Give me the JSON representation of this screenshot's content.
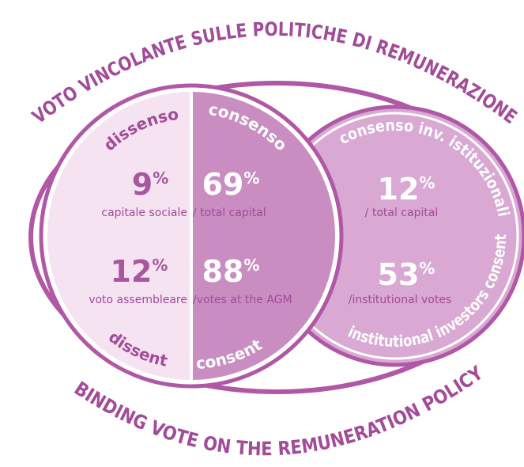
{
  "header": {
    "title_it": "VOTO VINCOLANTE SULLE POLITICHE DI REMUNERAZIONE",
    "title_en": "BINDING VOTE ON THE REMUNERATION POLICY"
  },
  "dissent": {
    "label_it": "dissenso",
    "label_en": "dissent",
    "capital": "9%",
    "votes": "12%"
  },
  "consent": {
    "label_it": "consenso",
    "label_en": "consent",
    "capital": "69%",
    "votes": "88%"
  },
  "institutional": {
    "label_it": "consenso inv. istituzionali",
    "label_en": "institutional investors consent",
    "capital": "12%",
    "votes": "53%"
  },
  "captions": {
    "capital_it": "capitale sociale",
    "capital_en": "/ total capital",
    "votes_it": "voto assembleare",
    "votes_en": "/votes at the AGM",
    "inst_capital": "/ total capital",
    "inst_votes": "/institutional votes"
  }
}
